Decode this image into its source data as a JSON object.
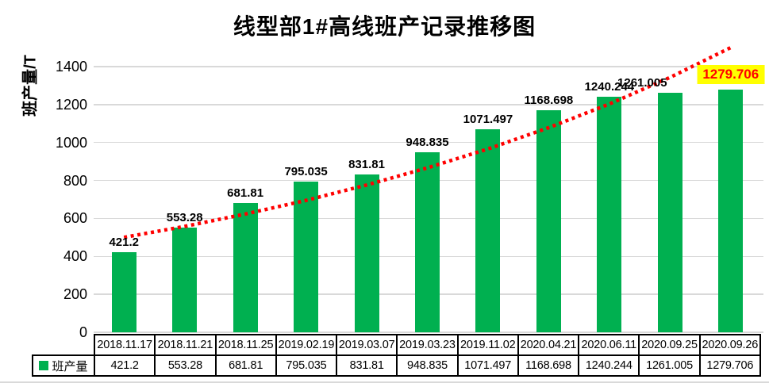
{
  "title": "线型部1#高线班产记录推移图",
  "y_axis": {
    "label": "班产量/T",
    "ticks": [
      "0",
      "200",
      "400",
      "600",
      "800",
      "1000",
      "1200",
      "1400"
    ]
  },
  "legend": {
    "label": "班产量",
    "marker_color": "#00B050"
  },
  "chart_data": {
    "type": "bar",
    "title": "线型部1#高线班产记录推移图",
    "ylabel": "班产量/T",
    "xlabel": "",
    "ylim": [
      0,
      1500
    ],
    "grid": true,
    "gridline_interval": 200,
    "legend_position": "bottom-left-of-data-table",
    "categories": [
      "2018.11.17",
      "2018.11.21",
      "2018.11.25",
      "2019.02.19",
      "2019.03.07",
      "2019.03.23",
      "2019.11.02",
      "2020.04.21",
      "2020.06.11",
      "2020.09.25",
      "2020.09.26"
    ],
    "series": [
      {
        "name": "班产量",
        "color": "#00B050",
        "values": [
          421.2,
          553.28,
          681.81,
          795.035,
          831.81,
          948.835,
          1071.497,
          1168.698,
          1240.244,
          1261.005,
          1279.706
        ]
      }
    ],
    "data_labels": [
      "421.2",
      "553.28",
      "681.81",
      "795.035",
      "831.81",
      "948.835",
      "1071.497",
      "1168.698",
      "1240.244",
      "1261.005",
      "1279.706"
    ],
    "highlighted_label": {
      "index": 10,
      "text": "1279.706",
      "background": "#FFFF00",
      "color": "#FF0000"
    },
    "trendline": {
      "type": "exponential",
      "style": "dotted",
      "color": "#FF0000",
      "values": [
        500,
        558,
        623,
        695,
        776,
        866,
        966,
        1078,
        1203,
        1343,
        1500
      ]
    },
    "colors": {
      "bar": "#00B050",
      "gridline": "#D9D9D9",
      "trend": "#FF0000",
      "highlight_bg": "#FFFF00",
      "highlight_text": "#FF0000"
    }
  },
  "table": {
    "legend_label": "班产量",
    "header_row": [
      "2018.11.17",
      "2018.11.21",
      "2018.11.25",
      "2019.02.19",
      "2019.03.07",
      "2019.03.23",
      "2019.11.02",
      "2020.04.21",
      "2020.06.11",
      "2020.09.25",
      "2020.09.26"
    ],
    "value_row": [
      "421.2",
      "553.28",
      "681.81",
      "795.035",
      "831.81",
      "948.835",
      "1071.497",
      "1168.698",
      "1240.244",
      "1261.005",
      "1279.706"
    ]
  }
}
